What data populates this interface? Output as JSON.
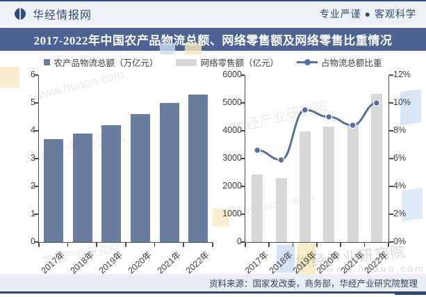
{
  "header": {
    "site_name": "华经情报网",
    "slogan": "专业严谨 ● 客观科学"
  },
  "title": "2017-2022年中国农产品物流总额、网络零售额及网络零售比重情况",
  "legend": [
    {
      "label": "农产品物流总额（万亿元）",
      "swatch": "square",
      "color": "#697d9e"
    },
    {
      "label": "网络零售额（亿元）",
      "swatch": "bar",
      "color": "#d8d8d8"
    },
    {
      "label": "占物流总额比重",
      "swatch": "line-dot",
      "color": "#54719e"
    }
  ],
  "watermark": {
    "brand": "华经产业研究院",
    "url": "www.huaon.com"
  },
  "source_note": "资料来源：国家发改委，商务部，华经产业研究院整理",
  "colors": {
    "frame_navy": "#2e4b7d",
    "banner_blue": "#4c6394",
    "bar_blue": "#697d9e",
    "bar_gray": "#d8d8d8",
    "line_blue": "#54719e",
    "header_bg": "#eef1f6",
    "source_bg": "#eaeff7"
  },
  "chart_data": [
    {
      "type": "bar",
      "title": "农产品物流总额（万亿元）",
      "categories": [
        "2017年",
        "2018年",
        "2019年",
        "2020年",
        "2021年",
        "2022年"
      ],
      "values": [
        3.7,
        3.9,
        4.2,
        4.6,
        5.0,
        5.3
      ],
      "xlabel": "",
      "ylabel": "",
      "ylim": [
        0,
        6
      ],
      "yticks": [
        0,
        1,
        2,
        3,
        4,
        5,
        6
      ],
      "grid": false,
      "bar_color": "#697d9e",
      "legend_position": "top"
    },
    {
      "type": "bar+line",
      "title": "网络零售额及占物流总额比重",
      "categories": [
        "2017年",
        "2018年",
        "2019年",
        "2020年",
        "2021年",
        "2022年"
      ],
      "series": [
        {
          "name": "网络零售额（亿元）",
          "type": "bar",
          "axis": "left",
          "values": [
            2437,
            2305,
            3975,
            4159,
            4221,
            5314
          ]
        },
        {
          "name": "占物流总额比重",
          "type": "line",
          "axis": "right",
          "values_pct": [
            6.6,
            5.9,
            9.5,
            9.0,
            8.4,
            10.0
          ]
        }
      ],
      "ylim_left": [
        0,
        6000
      ],
      "yticks_left": [
        0,
        1000,
        2000,
        3000,
        4000,
        5000,
        6000
      ],
      "ylim_right_pct": [
        0,
        12
      ],
      "yticks_right": [
        "0%",
        "2%",
        "4%",
        "6%",
        "8%",
        "10%",
        "12%"
      ],
      "grid": false,
      "bar_color": "#d8d8d8",
      "line_color": "#54719e",
      "legend_position": "top"
    }
  ]
}
